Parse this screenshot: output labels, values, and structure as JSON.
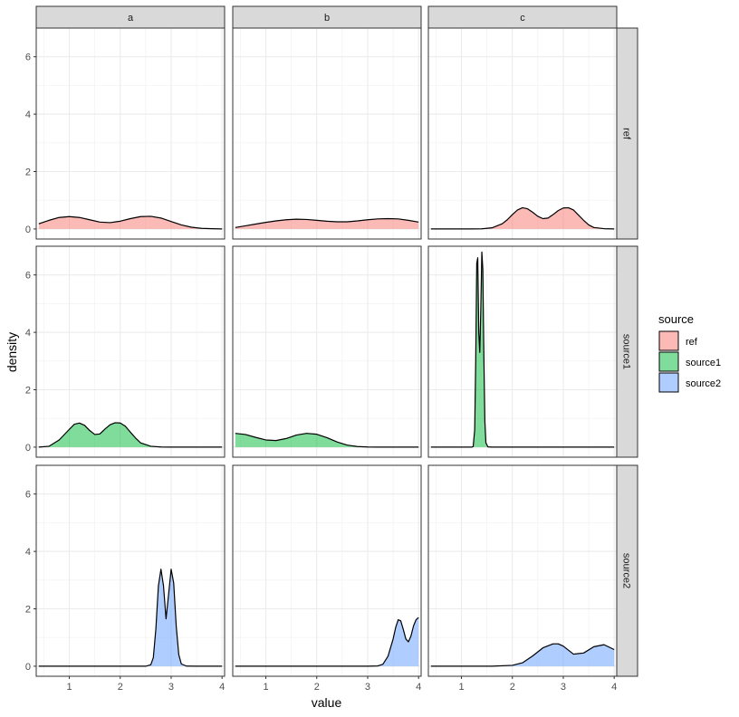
{
  "chart_data": {
    "type": "area",
    "facet_cols": [
      "a",
      "b",
      "c"
    ],
    "facet_rows": [
      "ref",
      "source1",
      "source2"
    ],
    "xlabel": "value",
    "ylabel": "density",
    "xlim": [
      0.35,
      4.05
    ],
    "ylim": [
      -0.35,
      7.0
    ],
    "x_ticks": [
      1,
      2,
      3,
      4
    ],
    "y_ticks": [
      0,
      2,
      4,
      6
    ],
    "legend": {
      "title": "source",
      "position": "right",
      "entries": [
        {
          "name": "ref",
          "color": "#F8766D"
        },
        {
          "name": "source1",
          "color": "#00BA38"
        },
        {
          "name": "source2",
          "color": "#619CFF"
        }
      ]
    },
    "panels": [
      {
        "row": "ref",
        "col": "a",
        "x": [
          0.4,
          0.6,
          0.8,
          1.0,
          1.2,
          1.4,
          1.6,
          1.8,
          2.0,
          2.2,
          2.4,
          2.6,
          2.8,
          3.0,
          3.2,
          3.4,
          3.6,
          3.8,
          4.0
        ],
        "y": [
          0.18,
          0.3,
          0.4,
          0.43,
          0.4,
          0.32,
          0.24,
          0.22,
          0.27,
          0.36,
          0.43,
          0.44,
          0.38,
          0.26,
          0.14,
          0.06,
          0.02,
          0.01,
          0.0
        ]
      },
      {
        "row": "ref",
        "col": "b",
        "x": [
          0.4,
          0.6,
          0.8,
          1.0,
          1.2,
          1.4,
          1.6,
          1.8,
          2.0,
          2.2,
          2.4,
          2.6,
          2.8,
          3.0,
          3.2,
          3.4,
          3.6,
          3.8,
          4.0
        ],
        "y": [
          0.05,
          0.11,
          0.17,
          0.23,
          0.28,
          0.32,
          0.34,
          0.33,
          0.3,
          0.27,
          0.25,
          0.25,
          0.28,
          0.32,
          0.35,
          0.36,
          0.35,
          0.3,
          0.24
        ]
      },
      {
        "row": "ref",
        "col": "c",
        "x": [
          0.4,
          0.8,
          1.2,
          1.4,
          1.6,
          1.8,
          1.9,
          2.0,
          2.1,
          2.2,
          2.3,
          2.4,
          2.5,
          2.6,
          2.7,
          2.8,
          2.9,
          3.0,
          3.1,
          3.2,
          3.3,
          3.4,
          3.5,
          3.6,
          3.8,
          4.0
        ],
        "y": [
          0,
          0,
          0,
          0.005,
          0.04,
          0.18,
          0.32,
          0.5,
          0.66,
          0.74,
          0.7,
          0.58,
          0.44,
          0.36,
          0.38,
          0.5,
          0.64,
          0.73,
          0.74,
          0.66,
          0.48,
          0.3,
          0.14,
          0.05,
          0.01,
          0
        ]
      },
      {
        "row": "source1",
        "col": "a",
        "x": [
          0.4,
          0.6,
          0.8,
          1.0,
          1.1,
          1.2,
          1.3,
          1.4,
          1.5,
          1.6,
          1.7,
          1.8,
          1.9,
          2.0,
          2.1,
          2.2,
          2.3,
          2.4,
          2.6,
          2.8,
          3.0,
          3.5,
          4.0
        ],
        "y": [
          0.0,
          0.03,
          0.25,
          0.62,
          0.8,
          0.84,
          0.76,
          0.58,
          0.44,
          0.46,
          0.63,
          0.78,
          0.85,
          0.84,
          0.73,
          0.52,
          0.32,
          0.15,
          0.03,
          0.005,
          0,
          0,
          0
        ]
      },
      {
        "row": "source1",
        "col": "b",
        "x": [
          0.4,
          0.6,
          0.8,
          1.0,
          1.2,
          1.4,
          1.6,
          1.8,
          2.0,
          2.2,
          2.4,
          2.6,
          2.8,
          3.0,
          3.2,
          3.5,
          4.0
        ],
        "y": [
          0.48,
          0.44,
          0.34,
          0.25,
          0.23,
          0.3,
          0.42,
          0.48,
          0.45,
          0.33,
          0.18,
          0.07,
          0.02,
          0.005,
          0,
          0,
          0
        ]
      },
      {
        "row": "source1",
        "col": "c",
        "x": [
          0.4,
          1.0,
          1.2,
          1.23,
          1.26,
          1.28,
          1.3,
          1.32,
          1.34,
          1.36,
          1.38,
          1.4,
          1.42,
          1.44,
          1.46,
          1.48,
          1.52,
          1.6,
          2.0,
          3.0,
          4.0
        ],
        "y": [
          0,
          0,
          0,
          0.02,
          0.6,
          3.0,
          6.4,
          6.6,
          4.0,
          3.3,
          4.8,
          6.8,
          6.2,
          3.2,
          0.9,
          0.15,
          0.01,
          0,
          0,
          0,
          0
        ]
      },
      {
        "row": "source2",
        "col": "a",
        "x": [
          0.4,
          1.0,
          2.0,
          2.5,
          2.6,
          2.65,
          2.7,
          2.75,
          2.8,
          2.85,
          2.9,
          2.95,
          3.0,
          3.05,
          3.1,
          3.15,
          3.2,
          3.3,
          3.5,
          4.0
        ],
        "y": [
          0,
          0,
          0,
          0.0,
          0.05,
          0.3,
          1.3,
          2.8,
          3.38,
          2.8,
          1.65,
          2.5,
          3.38,
          2.9,
          1.4,
          0.4,
          0.08,
          0.005,
          0,
          0
        ]
      },
      {
        "row": "source2",
        "col": "b",
        "x": [
          0.4,
          1.0,
          2.0,
          3.0,
          3.2,
          3.3,
          3.4,
          3.5,
          3.55,
          3.6,
          3.65,
          3.7,
          3.75,
          3.8,
          3.85,
          3.9,
          3.95,
          4.0
        ],
        "y": [
          0,
          0,
          0,
          0,
          0.01,
          0.07,
          0.35,
          0.95,
          1.35,
          1.62,
          1.58,
          1.28,
          0.95,
          0.85,
          1.05,
          1.4,
          1.62,
          1.7
        ]
      },
      {
        "row": "source2",
        "col": "c",
        "x": [
          0.4,
          1.0,
          1.6,
          2.0,
          2.2,
          2.4,
          2.6,
          2.8,
          2.9,
          3.0,
          3.2,
          3.4,
          3.6,
          3.8,
          4.0
        ],
        "y": [
          0,
          0,
          0.002,
          0.03,
          0.12,
          0.36,
          0.64,
          0.78,
          0.78,
          0.7,
          0.42,
          0.46,
          0.68,
          0.75,
          0.58
        ]
      }
    ]
  }
}
